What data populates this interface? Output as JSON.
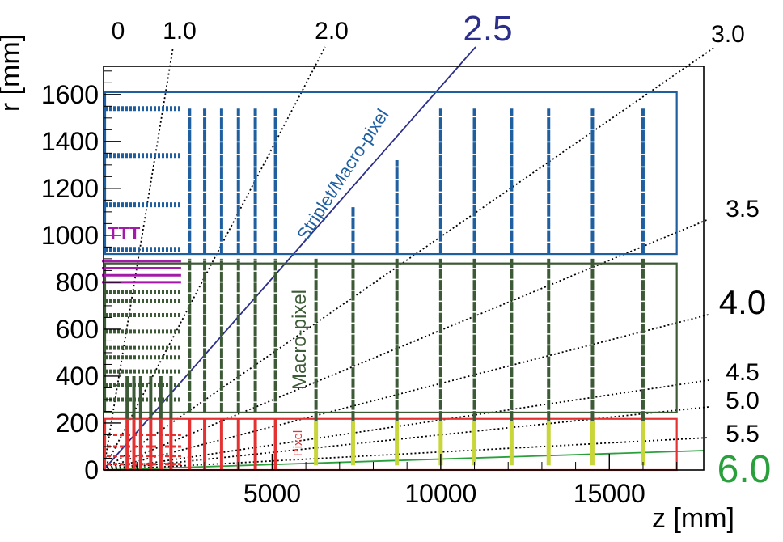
{
  "chart_data": {
    "type": "diagram",
    "xlabel": "z [mm]",
    "ylabel": "r [mm]",
    "xlim": [
      0,
      17800
    ],
    "ylim": [
      0,
      1720
    ],
    "x_ticks": [
      {
        "value": 5000,
        "label": "5000"
      },
      {
        "value": 10000,
        "label": "10000"
      },
      {
        "value": 15000,
        "label": "15000"
      }
    ],
    "y_ticks": [
      {
        "value": 0,
        "label": "0"
      },
      {
        "value": 200,
        "label": "200"
      },
      {
        "value": 400,
        "label": "400"
      },
      {
        "value": 600,
        "label": "600"
      },
      {
        "value": 800,
        "label": "800"
      },
      {
        "value": 1000,
        "label": "1000"
      },
      {
        "value": 1200,
        "label": "1200"
      },
      {
        "value": 1400,
        "label": "1400"
      },
      {
        "value": 1600,
        "label": "1600"
      }
    ],
    "regions": [
      {
        "name": "Striplet/Macro-pixel",
        "z": [
          0,
          17000
        ],
        "r": [
          920,
          1610
        ],
        "color": "#1f5fa0"
      },
      {
        "name": "Macro-pixel",
        "z": [
          0,
          17000
        ],
        "r": [
          245,
          880
        ],
        "color": "#3d5a36"
      },
      {
        "name": "Pixel",
        "z": [
          0,
          17000
        ],
        "r": [
          0,
          218
        ],
        "color": "#e43232"
      }
    ],
    "region_labels": {
      "striplet": "Striplet/Macro-pixel",
      "macro": "Macro-pixel",
      "pixel": "Pixel",
      "ttt": "TTT"
    },
    "eta_lines": [
      {
        "eta": 0,
        "label": "0",
        "color": "#000000",
        "style": "none"
      },
      {
        "eta": 1.0,
        "label": "1.0",
        "color": "#000000",
        "style": "dotted"
      },
      {
        "eta": 2.0,
        "label": "2.0",
        "color": "#000000",
        "style": "dotted"
      },
      {
        "eta": 2.5,
        "label": "2.5",
        "color": "#2b2e8a",
        "style": "solid"
      },
      {
        "eta": 3.0,
        "label": "3.0",
        "color": "#000000",
        "style": "dotted"
      },
      {
        "eta": 3.5,
        "label": "3.5",
        "color": "#000000",
        "style": "dotted"
      },
      {
        "eta": 4.0,
        "label": "4.0",
        "color": "#000000",
        "style": "dotted"
      },
      {
        "eta": 4.5,
        "label": "4.5",
        "color": "#000000",
        "style": "dotted"
      },
      {
        "eta": 5.0,
        "label": "5.0",
        "color": "#000000",
        "style": "dotted"
      },
      {
        "eta": 5.5,
        "label": "5.5",
        "color": "#000000",
        "style": "dotted"
      },
      {
        "eta": 6.0,
        "label": "6.0",
        "color": "#2aa03c",
        "style": "solid"
      }
    ],
    "barrel_layers": {
      "z_max": 2300,
      "pixel_r": [
        25,
        60,
        100,
        150
      ],
      "macro_r": [
        300,
        360,
        420,
        480,
        520,
        590,
        660,
        720,
        760
      ],
      "striplet_r": [
        940,
        1130,
        1340,
        1540
      ],
      "ttt_r": [
        1000
      ],
      "ttt_layers_r": [
        800,
        830,
        860,
        890
      ]
    },
    "endcap_disks": {
      "inner": [
        {
          "z": 700,
          "r_max": 400
        },
        {
          "z": 900,
          "r_max": 400
        },
        {
          "z": 1100,
          "r_max": 400
        },
        {
          "z": 1400,
          "r_max": 400
        },
        {
          "z": 1700,
          "r_max": 400
        },
        {
          "z": 2000,
          "r_max": 400
        }
      ],
      "mid": [
        {
          "z": 2550,
          "r_max": 1540
        },
        {
          "z": 3000,
          "r_max": 1540
        },
        {
          "z": 3500,
          "r_max": 1540
        },
        {
          "z": 4000,
          "r_max": 1540
        },
        {
          "z": 4500,
          "r_max": 1540
        },
        {
          "z": 5100,
          "r_max": 1540
        }
      ],
      "outer": [
        {
          "z": 6300,
          "r_max": 910
        },
        {
          "z": 7400,
          "r_max": 1120
        },
        {
          "z": 8700,
          "r_max": 1320
        },
        {
          "z": 10000,
          "r_max": 1540
        },
        {
          "z": 11000,
          "r_max": 1540
        },
        {
          "z": 12100,
          "r_max": 1540
        },
        {
          "z": 13200,
          "r_max": 1540
        },
        {
          "z": 14500,
          "r_max": 1540
        },
        {
          "z": 16000,
          "r_max": 1540
        }
      ]
    },
    "colors": {
      "striplet": "#1f5fa0",
      "macro": "#3d5a36",
      "pixel": "#e43232",
      "pixel_outer": "#c8d63a",
      "ttt": "#a31aa8",
      "eta25": "#2b2e8a",
      "eta60": "#2aa03c"
    }
  }
}
